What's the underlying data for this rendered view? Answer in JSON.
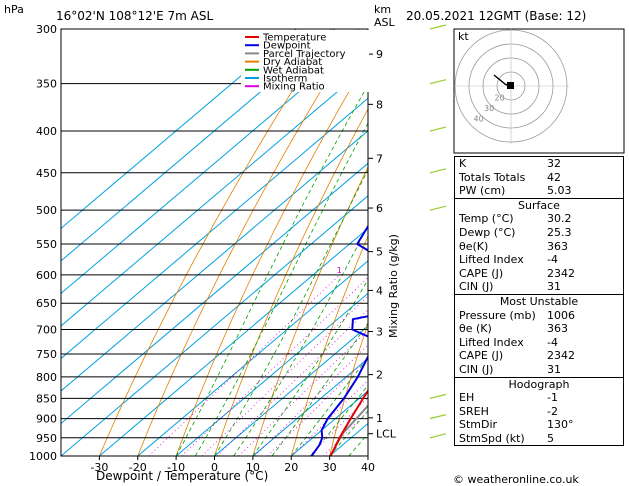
{
  "header": {
    "location": "16°02'N  108°12'E  7m  ASL",
    "datetime": "20.05.2021  12GMT  (Base: 12)",
    "pressure_unit": "hPa",
    "height_unit_km": "km",
    "height_unit_asl": "ASL"
  },
  "chart_data": {
    "type": "line",
    "title": "",
    "xlabel": "Dewpoint / Temperature (°C)",
    "ylabel": "hPa",
    "right_axis_label": "Mixing Ratio (g/kg)",
    "x_ticks": [
      -30,
      -20,
      -10,
      0,
      10,
      20,
      30,
      40
    ],
    "p_ticks": [
      300,
      350,
      400,
      450,
      500,
      550,
      600,
      650,
      700,
      750,
      800,
      850,
      900,
      950,
      1000
    ],
    "km_ticks": [
      {
        "p": 322,
        "label": "9"
      },
      {
        "p": 371,
        "label": "8"
      },
      {
        "p": 432,
        "label": "7"
      },
      {
        "p": 497,
        "label": "6"
      },
      {
        "p": 562,
        "label": "5"
      },
      {
        "p": 627,
        "label": "4"
      },
      {
        "p": 704,
        "label": "3"
      },
      {
        "p": 795,
        "label": "2"
      },
      {
        "p": 898,
        "label": "1"
      },
      {
        "p": 939,
        "label": "LCL"
      }
    ],
    "mixing_ratio_labels": [
      "1",
      "2",
      "3",
      "4",
      "6",
      "8",
      "10",
      "15",
      "20",
      "25"
    ],
    "legend": [
      {
        "name": "Temperature",
        "color": "#e00000"
      },
      {
        "name": "Dewpoint",
        "color": "#0000e0"
      },
      {
        "name": "Parcel Trajectory",
        "color": "#888888"
      },
      {
        "name": "Dry Adiabat",
        "color": "#e08000"
      },
      {
        "name": "Wet Adiabat",
        "color": "#00a000"
      },
      {
        "name": "Isotherm",
        "color": "#00a0e0"
      },
      {
        "name": "Mixing Ratio",
        "color": "#e000e0"
      }
    ],
    "temperature": [
      [
        1000,
        30.2
      ],
      [
        980,
        29
      ],
      [
        950,
        27
      ],
      [
        925,
        25.5
      ],
      [
        900,
        24
      ],
      [
        850,
        21
      ],
      [
        800,
        18
      ],
      [
        750,
        14.5
      ],
      [
        700,
        11
      ],
      [
        650,
        7.5
      ],
      [
        600,
        4
      ],
      [
        550,
        0
      ],
      [
        500,
        -5
      ],
      [
        450,
        -10
      ],
      [
        400,
        -16
      ],
      [
        350,
        -24
      ],
      [
        300,
        -33
      ]
    ],
    "dewpoint": [
      [
        1000,
        25.3
      ],
      [
        970,
        24
      ],
      [
        950,
        22.5
      ],
      [
        930,
        20
      ],
      [
        900,
        18
      ],
      [
        850,
        16
      ],
      [
        800,
        13
      ],
      [
        750,
        9
      ],
      [
        720,
        6
      ],
      [
        700,
        -3
      ],
      [
        680,
        -6
      ],
      [
        660,
        5
      ],
      [
        640,
        3
      ],
      [
        620,
        -9
      ],
      [
        600,
        -4
      ],
      [
        580,
        -14
      ],
      [
        550,
        -28
      ],
      [
        500,
        -33
      ],
      [
        460,
        -36
      ],
      [
        450,
        -27
      ],
      [
        430,
        -24
      ],
      [
        400,
        -26
      ],
      [
        380,
        -20
      ],
      [
        370,
        -30
      ],
      [
        350,
        -32
      ],
      [
        330,
        -25
      ],
      [
        310,
        -33
      ],
      [
        300,
        -33
      ]
    ],
    "parcel": [
      [
        1000,
        30.2
      ],
      [
        939,
        26.5
      ],
      [
        900,
        25.5
      ],
      [
        850,
        24
      ],
      [
        800,
        22
      ],
      [
        750,
        19.5
      ],
      [
        700,
        17
      ],
      [
        650,
        14
      ],
      [
        600,
        10.5
      ],
      [
        550,
        6.5
      ],
      [
        500,
        2
      ],
      [
        450,
        -3
      ],
      [
        400,
        -9
      ],
      [
        350,
        -16
      ],
      [
        300,
        -25
      ]
    ],
    "xlim": [
      -40,
      40
    ],
    "plim": [
      1000,
      300
    ]
  },
  "indices": [
    {
      "label": "K",
      "value": "32"
    },
    {
      "label": "Totals Totals",
      "value": "42"
    },
    {
      "label": "PW (cm)",
      "value": "5.03"
    }
  ],
  "surface": {
    "title": "Surface",
    "rows": [
      {
        "label": "Temp (°C)",
        "value": "30.2"
      },
      {
        "label": "Dewp (°C)",
        "value": "25.3"
      },
      {
        "label": "θe(K)",
        "value": "363"
      },
      {
        "label": "Lifted Index",
        "value": "-4"
      },
      {
        "label": "CAPE (J)",
        "value": "2342"
      },
      {
        "label": "CIN (J)",
        "value": "31"
      }
    ]
  },
  "most_unstable": {
    "title": "Most Unstable",
    "rows": [
      {
        "label": "Pressure (mb)",
        "value": "1006"
      },
      {
        "label": "θe (K)",
        "value": "363"
      },
      {
        "label": "Lifted Index",
        "value": "-4"
      },
      {
        "label": "CAPE (J)",
        "value": "2342"
      },
      {
        "label": "CIN (J)",
        "value": "31"
      }
    ]
  },
  "hodograph": {
    "title": "Hodograph",
    "unit": "kt",
    "ring_labels": [
      "40",
      "30",
      "20"
    ],
    "rows": [
      {
        "label": "EH",
        "value": "-1"
      },
      {
        "label": "SREH",
        "value": "-2"
      },
      {
        "label": "StmDir",
        "value": "130°"
      },
      {
        "label": "StmSpd (kt)",
        "value": "5"
      }
    ]
  },
  "footer": "© weatheronline.co.uk"
}
